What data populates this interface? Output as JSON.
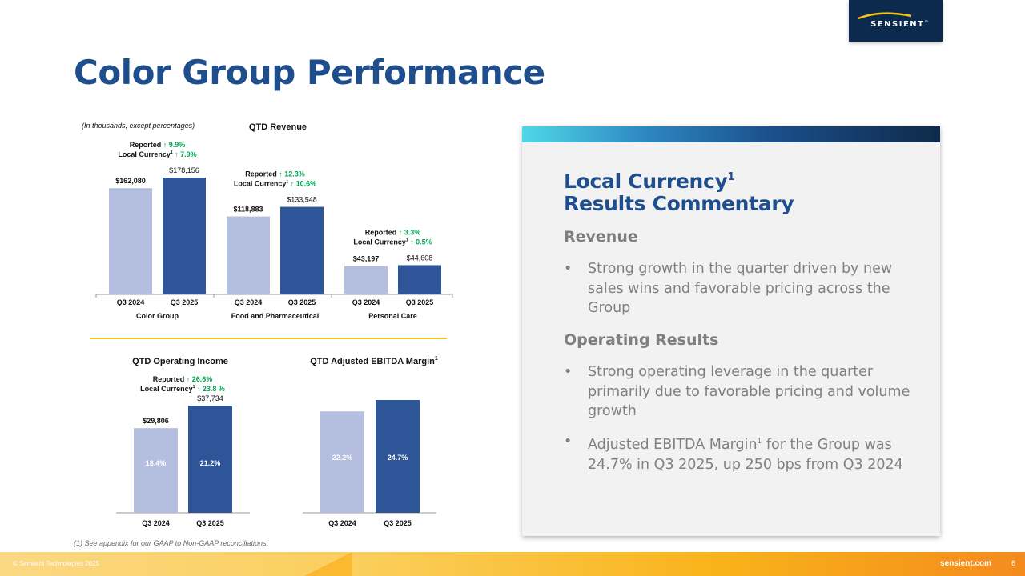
{
  "logo": {
    "brand": "SENSIENT",
    "tm": "™"
  },
  "title": "Color Group Performance",
  "revenue_chart": {
    "note": "(In thousands, except percentages)",
    "title": "QTD Revenue",
    "groups": [
      {
        "name": "Color Group",
        "reported_label": "Reported",
        "reported_value": "9.9%",
        "lc_label": "Local Currency",
        "lc_sup": "1",
        "lc_value": "7.9%",
        "bars": [
          {
            "label": "Q3 2024",
            "value_text": "$162,080"
          },
          {
            "label": "Q3 2025",
            "value_text": "$178,156"
          }
        ]
      },
      {
        "name": "Food and Pharmaceutical",
        "reported_label": "Reported",
        "reported_value": "12.3%",
        "lc_label": "Local Currency",
        "lc_sup": "1",
        "lc_value": "10.6%",
        "bars": [
          {
            "label": "Q3 2024",
            "value_text": "$118,883"
          },
          {
            "label": "Q3 2025",
            "value_text": "$133,548"
          }
        ]
      },
      {
        "name": "Personal Care",
        "reported_label": "Reported",
        "reported_value": "3.3%",
        "lc_label": "Local Currency",
        "lc_sup": "1",
        "lc_value": "0.5%",
        "bars": [
          {
            "label": "Q3 2024",
            "value_text": "$43,197"
          },
          {
            "label": "Q3 2025",
            "value_text": "$44,608"
          }
        ]
      }
    ]
  },
  "op_chart": {
    "title": "QTD Operating Income",
    "reported_label": "Reported",
    "reported_value": "26.6%",
    "lc_label": "Local Currency",
    "lc_sup": "1",
    "lc_value": "23.8 %",
    "bars": [
      {
        "label": "Q3 2024",
        "value_text": "$29,806",
        "inner": "18.4%"
      },
      {
        "label": "Q3 2025",
        "value_text": "$37,734",
        "inner": "21.2%"
      }
    ]
  },
  "ebitda_chart": {
    "title": "QTD Adjusted EBITDA Margin",
    "title_sup": "1",
    "bars": [
      {
        "label": "Q3 2024",
        "inner": "22.2%"
      },
      {
        "label": "Q3 2025",
        "inner": "24.7%"
      }
    ]
  },
  "chart_data": [
    {
      "type": "bar",
      "title": "QTD Revenue",
      "subtitle": "(In thousands, except percentages)",
      "categories": [
        "Color Group",
        "Food and Pharmaceutical",
        "Personal Care"
      ],
      "series": [
        {
          "name": "Q3 2024",
          "values": [
            162080,
            118883,
            43197
          ]
        },
        {
          "name": "Q3 2025",
          "values": [
            178156,
            133548,
            44608
          ]
        }
      ],
      "ylim": [
        0,
        200000
      ]
    },
    {
      "type": "bar",
      "title": "QTD Operating Income",
      "categories": [
        "Q3 2024",
        "Q3 2025"
      ],
      "values": [
        29806,
        37734
      ],
      "margins_pct": [
        18.4,
        21.2
      ],
      "ylim": [
        0,
        50000
      ]
    },
    {
      "type": "bar",
      "title": "QTD Adjusted EBITDA Margin",
      "categories": [
        "Q3 2024",
        "Q3 2025"
      ],
      "values": [
        22.2,
        24.7
      ],
      "ylim": [
        0,
        30
      ]
    }
  ],
  "footnote": "(1) See appendix for our GAAP to Non-GAAP reconciliations.",
  "commentary": {
    "heading_line1": "Local Currency",
    "heading_sup": "1",
    "heading_line2": "Results Commentary",
    "revenue_heading": "Revenue",
    "revenue_bullet": "Strong growth in the quarter driven by new sales wins and favorable pricing across the Group",
    "op_heading": "Operating Results",
    "op_bullet": "Strong operating leverage in the quarter primarily due to favorable pricing and volume growth",
    "ebitda_bullet_a": "Adjusted EBITDA Margin",
    "ebitda_bullet_sup": "1",
    "ebitda_bullet_b": " for the Group was 24.7% in Q3 2025, up 250 bps from Q3 2024"
  },
  "footer": {
    "copyright": "© Sensient Technologies 2025",
    "site": "sensient.com",
    "page": "6"
  },
  "colors": {
    "bar_light": "#b4bfdf",
    "bar_dark": "#2e5597",
    "title_blue": "#1f4e8c",
    "green_up": "#00a651",
    "gold_rule": "#f5c518"
  }
}
